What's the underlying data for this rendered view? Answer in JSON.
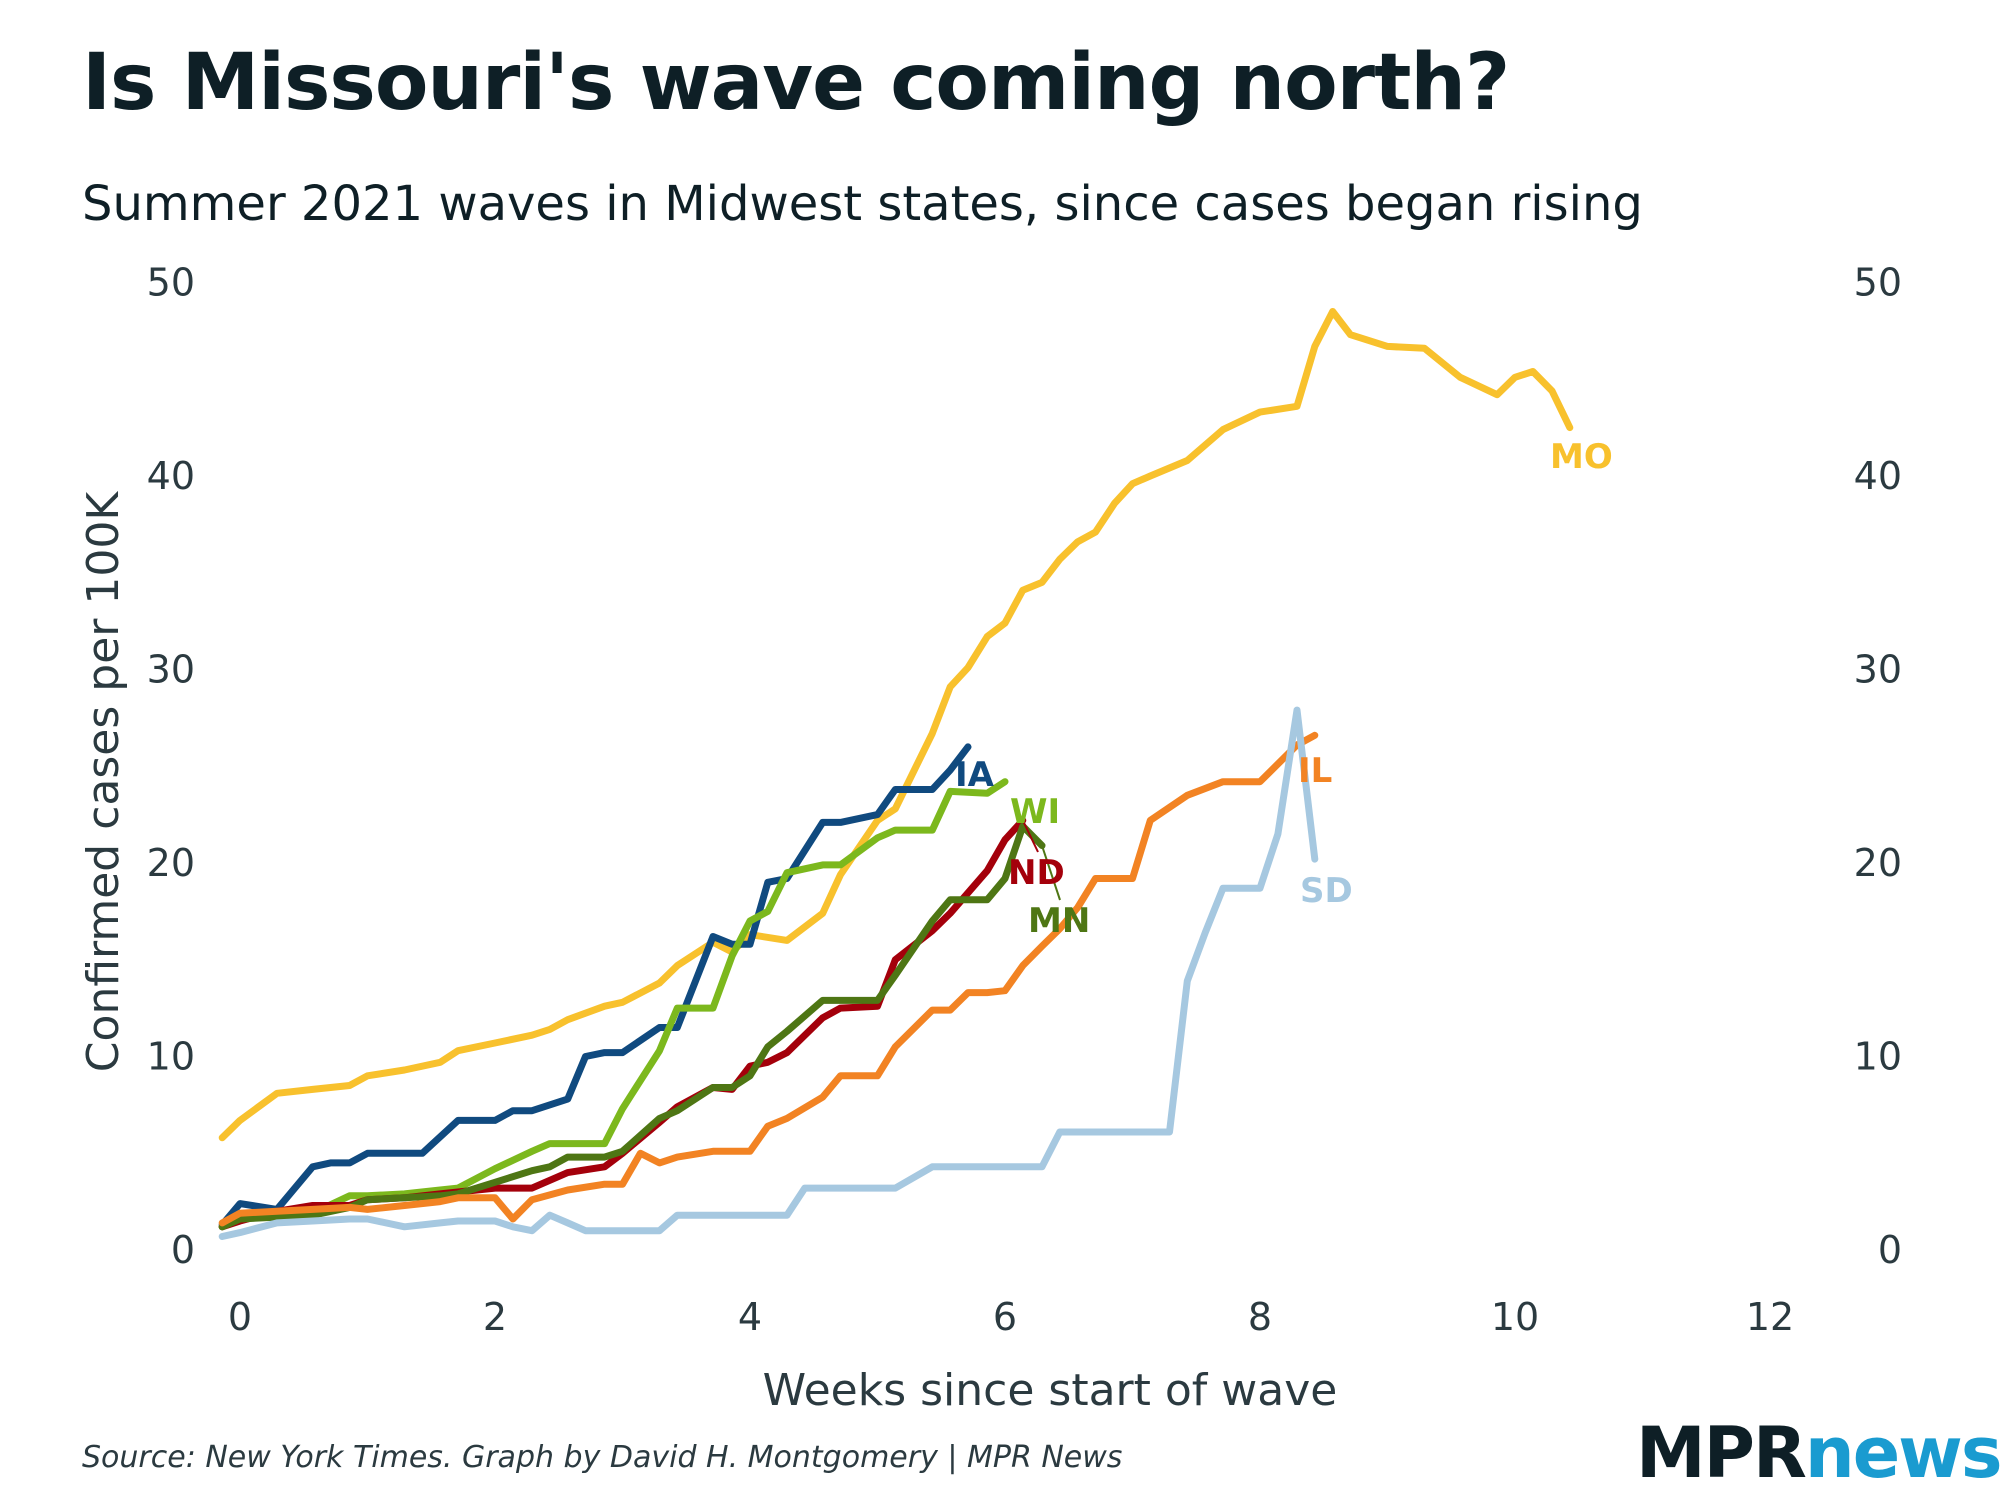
{
  "title": "Is Missouri's wave coming north?",
  "subtitle": "Summer 2021 waves in Midwest states, since cases began rising",
  "source": "Source: New York Times. Graph by David H. Montgomery | MPR News",
  "logo": {
    "part1": "MPR",
    "part2": "news"
  },
  "chart_data": {
    "type": "line",
    "title": "Is Missouri's wave coming north?",
    "subtitle": "Summer 2021 waves in Midwest states, since cases began rising",
    "xlabel": "Weeks since start of wave",
    "ylabel": "Confirmed cases per 100K",
    "xlim": [
      -0.2,
      12.5
    ],
    "ylim": [
      0,
      50
    ],
    "xticks": [
      0,
      2,
      4,
      6,
      8,
      10,
      12
    ],
    "yticks": [
      0,
      10,
      20,
      30,
      40,
      50
    ],
    "grid": false,
    "legend": "direct labels at line ends",
    "series": [
      {
        "name": "MO",
        "color": "#f8c12d",
        "x": [
          -0.14,
          0,
          0.29,
          0.57,
          0.86,
          1,
          1.29,
          1.57,
          1.71,
          2,
          2.29,
          2.43,
          2.57,
          2.86,
          3,
          3.29,
          3.43,
          3.71,
          3.86,
          4,
          4.29,
          4.57,
          4.71,
          5,
          5.14,
          5.43,
          5.57,
          5.71,
          5.86,
          6,
          6.14,
          6.29,
          6.43,
          6.57,
          6.71,
          6.86,
          7,
          7.14,
          7.43,
          7.71,
          8,
          8.29,
          8.43,
          8.57,
          8.71,
          9,
          9.29,
          9.57,
          9.86,
          10,
          10.14,
          10.29,
          10.43
        ],
        "y": [
          5.8,
          6.7,
          8.1,
          8.3,
          8.5,
          9,
          9.3,
          9.7,
          10.3,
          10.7,
          11.1,
          11.4,
          11.9,
          12.6,
          12.8,
          13.8,
          14.7,
          15.9,
          15.4,
          16.3,
          16,
          17.4,
          19.4,
          22.2,
          22.8,
          26.7,
          29.1,
          30.1,
          31.7,
          32.4,
          34.1,
          34.5,
          35.7,
          36.6,
          37.1,
          38.6,
          39.6,
          40,
          40.8,
          42.4,
          43.3,
          43.6,
          46.7,
          48.5,
          47.3,
          46.7,
          46.6,
          45.1,
          44.2,
          45.1,
          45.4,
          44.4,
          42.5
        ]
      },
      {
        "name": "IA",
        "color": "#104a7f",
        "x": [
          -0.14,
          0,
          0.29,
          0.57,
          0.71,
          0.86,
          1,
          1.29,
          1.43,
          1.71,
          2,
          2.14,
          2.29,
          2.57,
          2.71,
          2.86,
          3,
          3.29,
          3.43,
          3.71,
          3.86,
          4,
          4.14,
          4.29,
          4.57,
          4.71,
          5,
          5.14,
          5.29,
          5.43,
          5.57,
          5.71
        ],
        "y": [
          1.3,
          2.4,
          2.1,
          4.3,
          4.5,
          4.5,
          5,
          5,
          5,
          6.7,
          6.7,
          7.2,
          7.2,
          7.8,
          10,
          10.2,
          10.2,
          11.5,
          11.5,
          16.2,
          15.8,
          15.8,
          19,
          19.2,
          22.1,
          22.1,
          22.5,
          23.8,
          23.8,
          23.8,
          24.8,
          26
        ]
      },
      {
        "name": "WI",
        "color": "#7cb81d",
        "x": [
          -0.14,
          0,
          0.29,
          0.57,
          0.86,
          1,
          1.29,
          1.57,
          1.71,
          2,
          2.29,
          2.43,
          2.57,
          2.86,
          3,
          3.29,
          3.43,
          3.71,
          3.86,
          4,
          4.14,
          4.29,
          4.57,
          4.71,
          5,
          5.14,
          5.43,
          5.57,
          5.86,
          6
        ],
        "y": [
          1.2,
          1.6,
          1.8,
          1.9,
          2.8,
          2.8,
          2.9,
          3.1,
          3.2,
          4.2,
          5.1,
          5.5,
          5.5,
          5.5,
          7.3,
          10.3,
          12.5,
          12.5,
          15.2,
          17,
          17.5,
          19.5,
          19.9,
          19.9,
          21.3,
          21.7,
          21.7,
          23.7,
          23.6,
          24.2
        ]
      },
      {
        "name": "ND",
        "color": "#a4000b",
        "x": [
          -0.14,
          0,
          0.29,
          0.57,
          0.86,
          1,
          1.29,
          1.57,
          1.71,
          2,
          2.14,
          2.29,
          2.57,
          2.86,
          3,
          3.29,
          3.43,
          3.71,
          3.86,
          4,
          4.14,
          4.29,
          4.57,
          4.71,
          5,
          5.14,
          5.43,
          5.57,
          5.86,
          6,
          6.14
        ],
        "y": [
          1.2,
          1.5,
          2,
          2.3,
          2.3,
          2.6,
          2.7,
          2.9,
          3,
          3.2,
          3.2,
          3.2,
          4,
          4.3,
          5,
          6.6,
          7.4,
          8.4,
          8.3,
          9.5,
          9.7,
          10.2,
          12,
          12.5,
          12.6,
          15,
          16.5,
          17.4,
          19.6,
          21.2,
          22.2
        ]
      },
      {
        "name": "MN",
        "color": "#4e7614",
        "x": [
          -0.14,
          0,
          0.29,
          0.57,
          0.86,
          1,
          1.29,
          1.57,
          1.71,
          2,
          2.29,
          2.43,
          2.57,
          2.86,
          3,
          3.29,
          3.43,
          3.71,
          3.86,
          4,
          4.14,
          4.29,
          4.57,
          4.71,
          5,
          5.14,
          5.43,
          5.57,
          5.86,
          6,
          6.14,
          6.29
        ],
        "y": [
          1.2,
          1.6,
          1.7,
          1.8,
          2.2,
          2.6,
          2.7,
          2.8,
          2.9,
          3.5,
          4.1,
          4.3,
          4.8,
          4.8,
          5.1,
          6.8,
          7.2,
          8.4,
          8.4,
          9,
          10.5,
          11.3,
          12.9,
          12.9,
          12.9,
          14.2,
          17,
          18.1,
          18.1,
          19.2,
          21.9,
          20.9
        ]
      },
      {
        "name": "IL",
        "color": "#f28323",
        "x": [
          -0.14,
          0,
          0.29,
          0.57,
          0.86,
          1,
          1.29,
          1.57,
          1.71,
          2,
          2.14,
          2.29,
          2.57,
          2.86,
          3,
          3.14,
          3.29,
          3.43,
          3.71,
          3.86,
          4,
          4.14,
          4.29,
          4.57,
          4.71,
          5,
          5.14,
          5.43,
          5.57,
          5.71,
          5.86,
          6,
          6.14,
          6.29,
          6.43,
          6.57,
          6.71,
          6.86,
          7,
          7.14,
          7.43,
          7.71,
          8,
          8.29,
          8.43
        ],
        "y": [
          1.4,
          1.9,
          2,
          2.1,
          2.2,
          2.1,
          2.3,
          2.5,
          2.7,
          2.7,
          1.6,
          2.6,
          3.1,
          3.4,
          3.4,
          5,
          4.5,
          4.8,
          5.1,
          5.1,
          5.1,
          6.4,
          6.8,
          7.9,
          9,
          9,
          10.5,
          12.4,
          12.4,
          13.3,
          13.3,
          13.4,
          14.7,
          15.7,
          16.6,
          17.7,
          19.2,
          19.2,
          19.2,
          22.2,
          23.5,
          24.2,
          24.2,
          26.1,
          26.6
        ]
      },
      {
        "name": "SD",
        "color": "#a6c8e0",
        "x": [
          -0.14,
          0,
          0.29,
          0.57,
          0.86,
          1,
          1.29,
          1.57,
          1.71,
          2,
          2.14,
          2.29,
          2.43,
          2.57,
          2.71,
          2.86,
          3,
          3.29,
          3.43,
          3.71,
          3.86,
          4,
          4.14,
          4.29,
          4.43,
          4.57,
          4.71,
          5,
          5.14,
          5.43,
          5.57,
          5.71,
          5.86,
          6,
          6.14,
          6.29,
          6.43,
          6.57,
          6.71,
          6.86,
          7,
          7.14,
          7.29,
          7.43,
          7.57,
          7.71,
          8,
          8.14,
          8.29,
          8.43
        ],
        "y": [
          0.7,
          0.9,
          1.4,
          1.5,
          1.6,
          1.6,
          1.2,
          1.4,
          1.5,
          1.5,
          1.2,
          1,
          1.8,
          1.4,
          1,
          1,
          1,
          1,
          1.8,
          1.8,
          1.8,
          1.8,
          1.8,
          1.8,
          3.2,
          3.2,
          3.2,
          3.2,
          3.2,
          4.3,
          4.3,
          4.3,
          4.3,
          4.3,
          4.3,
          4.3,
          6.1,
          6.1,
          6.1,
          6.1,
          6.1,
          6.1,
          6.1,
          13.9,
          16.4,
          18.7,
          18.7,
          21.5,
          27.9,
          20.2
        ]
      }
    ],
    "labels": [
      {
        "text": "MO",
        "color": "#f8c12d"
      },
      {
        "text": "IA",
        "color": "#104a7f"
      },
      {
        "text": "WI",
        "color": "#7cb81d"
      },
      {
        "text": "ND",
        "color": "#a4000b"
      },
      {
        "text": "MN",
        "color": "#4e7614"
      },
      {
        "text": "IL",
        "color": "#f28323"
      },
      {
        "text": "SD",
        "color": "#a6c8e0"
      }
    ]
  }
}
